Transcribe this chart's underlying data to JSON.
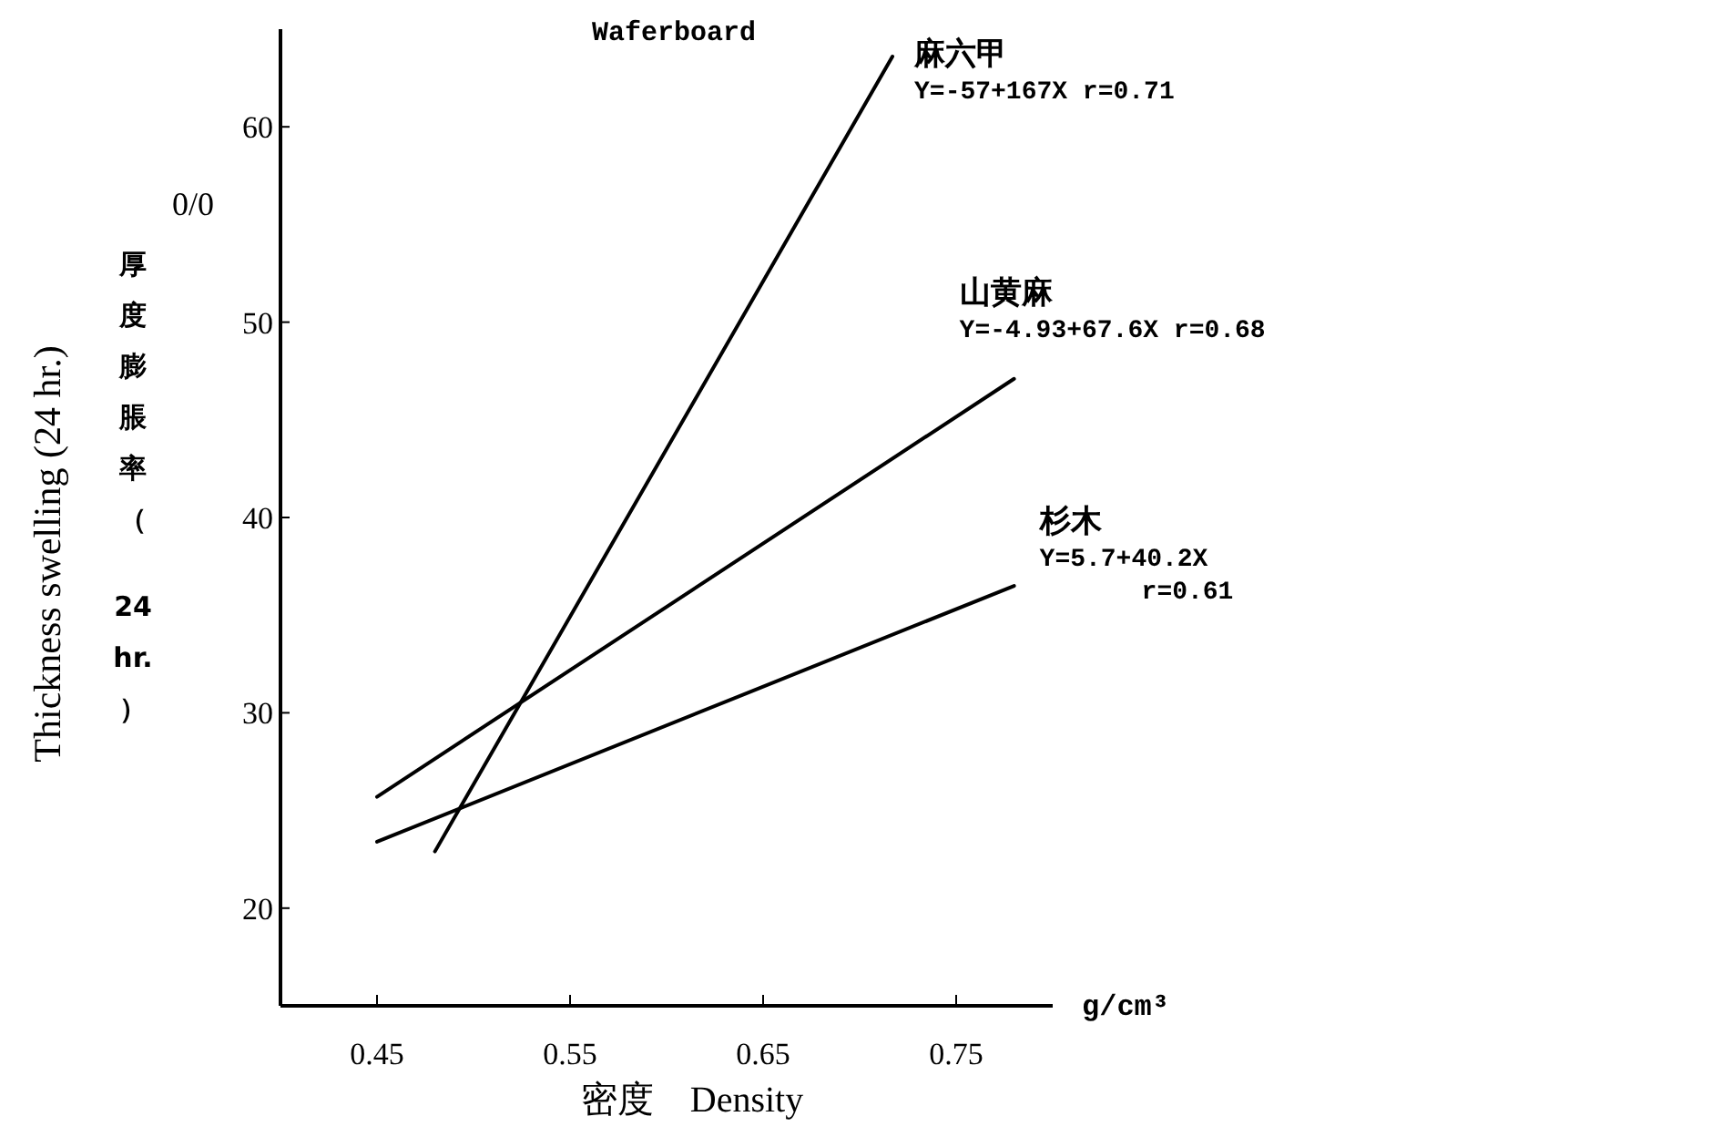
{
  "chart_data": {
    "type": "line",
    "title": "Waferboard",
    "xlabel": "密度　Density",
    "ylabel": "Thickness swelling (24 hr.)",
    "annotations": [
      "Y=-57+167X r=0.71",
      "Y=-4.93+67.6X r=0.68",
      "Y=5.7+40.2X r=0.61",
      "0/0",
      "g/cm³",
      "厚度膨脹率（24 hr.）"
    ],
    "xlim": [
      0.4,
      0.8
    ],
    "xticks": [
      0.45,
      0.55,
      0.65,
      0.75
    ],
    "ylim": [
      15,
      65
    ],
    "yticks": [
      20,
      30,
      40,
      50,
      60
    ],
    "grid": false,
    "marker": "none",
    "line_style": "solid",
    "series": [
      {
        "name": "麻六甲",
        "color": "#000000",
        "x": [
          0.48,
          0.717
        ],
        "values": [
          22.9,
          63.6
        ]
      },
      {
        "name": "山黄麻",
        "color": "#000000",
        "x": [
          0.45,
          0.78
        ],
        "values": [
          25.7,
          47.1
        ]
      },
      {
        "name": "杉木",
        "color": "#000000",
        "x": [
          0.45,
          0.78
        ],
        "values": [
          23.4,
          36.5
        ]
      }
    ]
  }
}
